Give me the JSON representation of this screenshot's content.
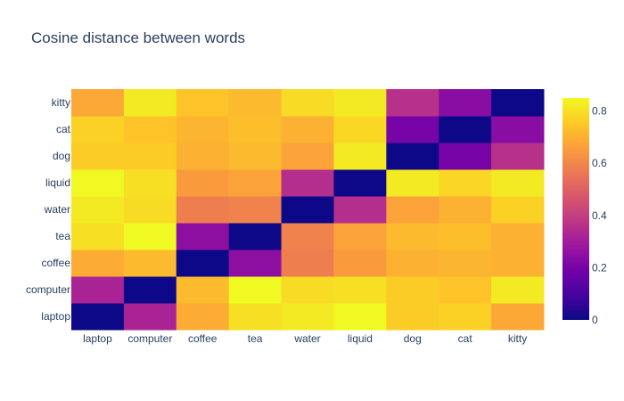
{
  "chart_data": {
    "type": "heatmap",
    "title": "Cosine distance between words",
    "x_categories": [
      "laptop",
      "computer",
      "coffee",
      "tea",
      "water",
      "liquid",
      "dog",
      "cat",
      "kitty"
    ],
    "y_categories": [
      "laptop",
      "computer",
      "coffee",
      "tea",
      "water",
      "liquid",
      "dog",
      "cat",
      "kitty"
    ],
    "values": [
      [
        0.0,
        0.32,
        0.69,
        0.8,
        0.82,
        0.85,
        0.76,
        0.77,
        0.68
      ],
      [
        0.32,
        0.0,
        0.72,
        0.85,
        0.79,
        0.8,
        0.76,
        0.74,
        0.82
      ],
      [
        0.69,
        0.72,
        0.0,
        0.25,
        0.58,
        0.65,
        0.7,
        0.71,
        0.7
      ],
      [
        0.8,
        0.85,
        0.25,
        0.0,
        0.59,
        0.67,
        0.72,
        0.73,
        0.7
      ],
      [
        0.82,
        0.79,
        0.58,
        0.59,
        0.0,
        0.35,
        0.67,
        0.7,
        0.77
      ],
      [
        0.85,
        0.8,
        0.65,
        0.67,
        0.35,
        0.0,
        0.82,
        0.78,
        0.82
      ],
      [
        0.76,
        0.76,
        0.7,
        0.72,
        0.67,
        0.82,
        0.0,
        0.2,
        0.36
      ],
      [
        0.77,
        0.74,
        0.71,
        0.73,
        0.7,
        0.78,
        0.2,
        0.0,
        0.24
      ],
      [
        0.68,
        0.82,
        0.74,
        0.72,
        0.79,
        0.82,
        0.36,
        0.24,
        0.0
      ]
    ],
    "colorscale": "Plasma",
    "zmin": 0,
    "zmax": 0.85,
    "colorbar_ticks": [
      0,
      0.2,
      0.4,
      0.6,
      0.8
    ],
    "colorbar_tick_labels": [
      "0",
      "0.2",
      "0.4",
      "0.6",
      "0.8"
    ],
    "colorscale_stops": [
      "#0d0887",
      "#46039f",
      "#7201a8",
      "#9c179e",
      "#bd3786",
      "#d8576b",
      "#ed7953",
      "#fb9f3a",
      "#fdca26",
      "#f0f921"
    ],
    "text_color": "#2a3f5f"
  }
}
